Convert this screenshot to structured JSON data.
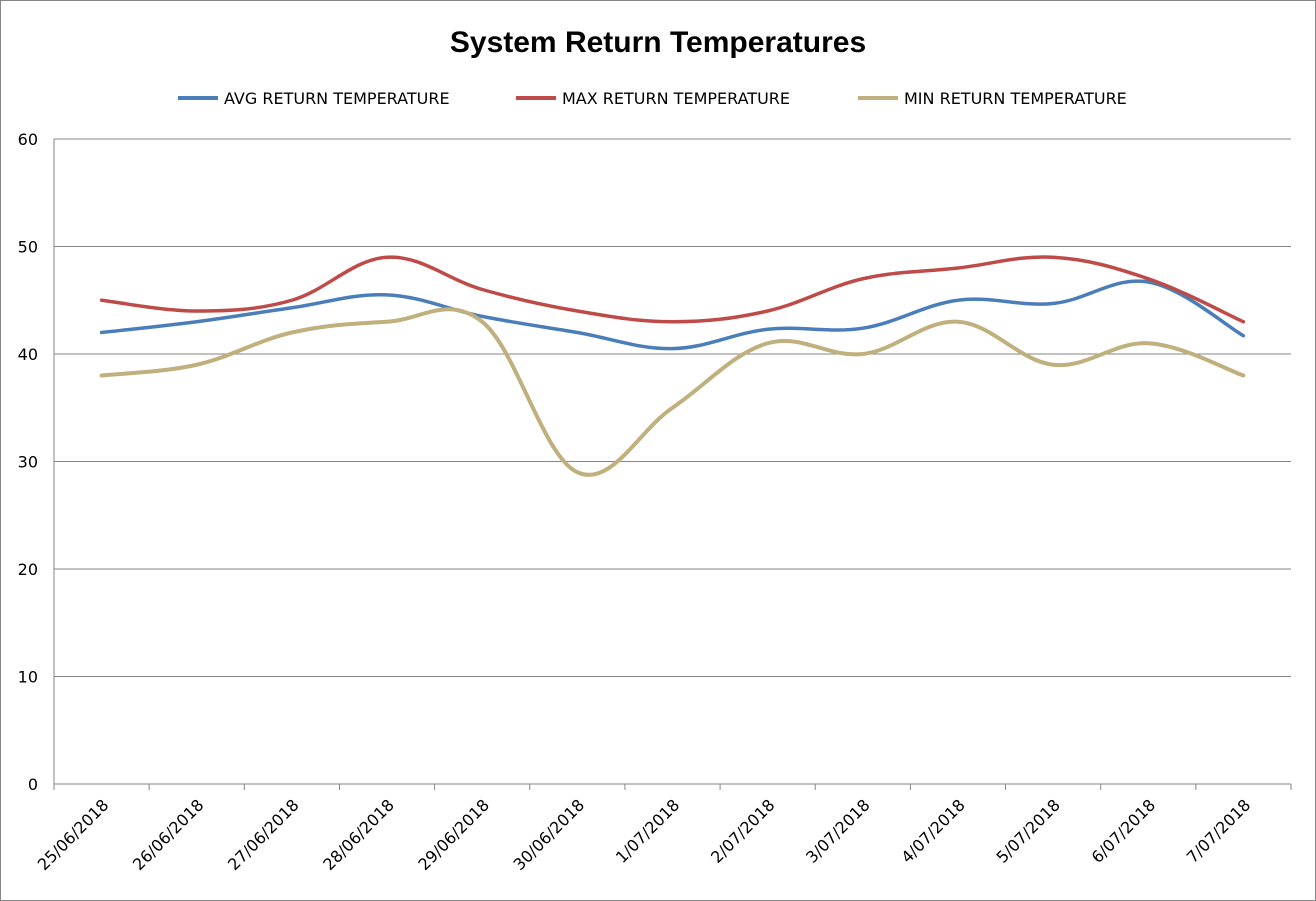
{
  "chart_data": {
    "type": "line",
    "title": "System Return Temperatures",
    "xlabel": "",
    "ylabel": "",
    "ylim": [
      0,
      60
    ],
    "yticks": [
      0,
      10,
      20,
      30,
      40,
      50,
      60
    ],
    "grid": true,
    "legend_position": "top",
    "categories": [
      "25/06/2018",
      "26/06/2018",
      "27/06/2018",
      "28/06/2018",
      "29/06/2018",
      "30/06/2018",
      "1/07/2018",
      "2/07/2018",
      "3/07/2018",
      "4/07/2018",
      "5/07/2018",
      "6/07/2018",
      "7/07/2018"
    ],
    "series": [
      {
        "name": "AVG RETURN TEMPERATURE",
        "color": "#4a7ebb",
        "values": [
          42,
          43,
          44.3,
          45.5,
          43.5,
          42,
          40.5,
          42.3,
          42.4,
          45,
          44.7,
          46.7,
          41.7
        ]
      },
      {
        "name": "MAX RETURN TEMPERATURE",
        "color": "#be4b48",
        "values": [
          45,
          44,
          45,
          49,
          46,
          44,
          43,
          44,
          47,
          48,
          49,
          47,
          43
        ]
      },
      {
        "name": "MIN RETURN TEMPERATURE",
        "color": "#bfb07d",
        "values": [
          38,
          39,
          42,
          43,
          43,
          29,
          35,
          41,
          40,
          43,
          39,
          41,
          38
        ]
      }
    ]
  }
}
